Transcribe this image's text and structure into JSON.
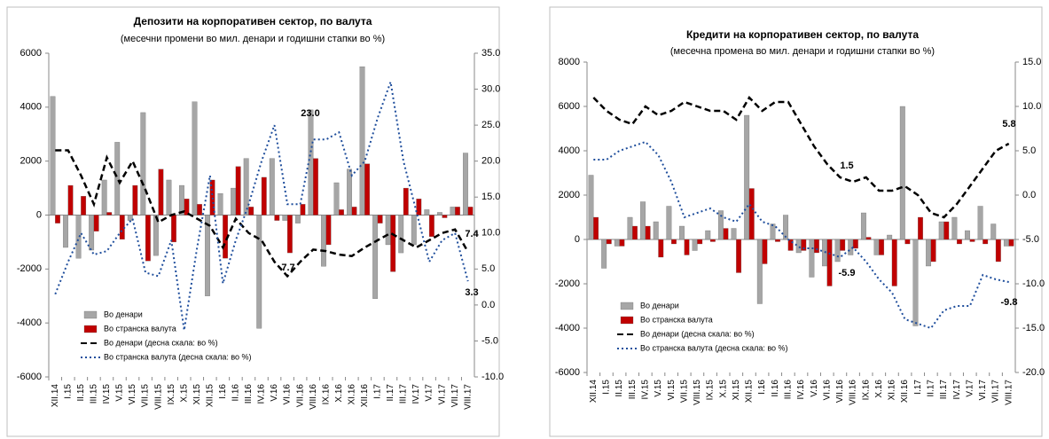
{
  "chart_data": [
    {
      "type": "bar-line",
      "title": "Депозити на корпоративен сектор, по валута",
      "subtitle": "(месечни промени во мил. денари и годишни стапки во %)",
      "categories": [
        "XII.14",
        "I.15",
        "II.15",
        "III.15",
        "IV.15",
        "V.15",
        "VI.15",
        "VII.15",
        "VIII.15",
        "IX.15",
        "X.15",
        "XI.15",
        "XII.15",
        "I.16",
        "II.16",
        "III.16",
        "IV.16",
        "V.16",
        "VI.16",
        "VII.16",
        "VIII.16",
        "IX.16",
        "X.16",
        "XI.16",
        "XII.16",
        "I.17",
        "II.17",
        "III.17",
        "IV.17",
        "V.17",
        "VI.17",
        "VII.17",
        "VIII.17"
      ],
      "series": [
        {
          "name": "Во денари",
          "kind": "bar",
          "color": "#a6a6a6",
          "values": [
            4400,
            -1200,
            -1600,
            -1300,
            1300,
            2700,
            -200,
            3800,
            -1500,
            1300,
            1100,
            4200,
            -3000,
            800,
            1000,
            2100,
            -4200,
            2100,
            -200,
            -300,
            3900,
            -1900,
            1200,
            1700,
            5500,
            -3100,
            -1100,
            -1400,
            -1100,
            200,
            100,
            300,
            2300
          ]
        },
        {
          "name": "Во странска валута",
          "kind": "bar",
          "color": "#c00000",
          "values": [
            -300,
            1100,
            700,
            -600,
            100,
            -900,
            1100,
            -1700,
            1700,
            -1000,
            600,
            400,
            1300,
            -1600,
            1800,
            300,
            1400,
            -200,
            -1400,
            400,
            2100,
            -1100,
            200,
            300,
            1900,
            -300,
            -2100,
            1000,
            600,
            -800,
            -100,
            300,
            300
          ]
        },
        {
          "name": "Во денари (десна скала: во %)",
          "kind": "line",
          "axis": "y2",
          "color": "#000000",
          "dash": "7,4",
          "values": [
            21.5,
            21.5,
            18,
            14,
            20.5,
            17,
            20,
            16,
            11.5,
            12.5,
            13,
            12,
            11,
            8,
            12,
            10,
            9,
            6,
            4,
            6,
            7.7,
            7.5,
            7,
            6.8,
            8,
            9,
            10,
            9,
            8,
            9,
            10,
            10.5,
            7.4
          ]
        },
        {
          "name": "Во странска валута (десна скала: во %)",
          "kind": "line",
          "axis": "y2",
          "color": "#1f4e9c",
          "dash": "2,3",
          "values": [
            1.5,
            6,
            10,
            7,
            7.5,
            10,
            12,
            4.5,
            4,
            9,
            -3.5,
            8,
            18,
            3,
            9,
            14,
            20,
            25,
            14,
            14,
            23,
            23,
            24,
            18,
            20,
            26,
            31,
            20,
            13,
            6,
            9,
            10,
            3.3
          ]
        }
      ],
      "ylim": [
        -6000,
        6000
      ],
      "yticks": [
        -6000,
        -4000,
        -2000,
        0,
        2000,
        4000,
        6000
      ],
      "y2lim": [
        -10,
        35
      ],
      "y2ticks": [
        {
          "value": -10,
          "label": "-10.0"
        },
        {
          "value": -5,
          "label": "-5.0"
        },
        {
          "value": 0,
          "label": "0.0"
        },
        {
          "value": 5,
          "label": "5.0"
        },
        {
          "value": 10,
          "label": "10.0"
        },
        {
          "value": 15,
          "label": "15.0"
        },
        {
          "value": 20,
          "label": "20.0"
        },
        {
          "value": 25,
          "label": "25.0"
        },
        {
          "value": 30,
          "label": "30.0"
        },
        {
          "value": 35,
          "label": "35.0"
        }
      ],
      "annotations": [
        "23.0",
        "7.7",
        "7.4",
        "3.3"
      ]
    },
    {
      "type": "bar-line",
      "title": "Кредити на корпоративен сектор, по валута",
      "subtitle": "(месечна промена во мил. денари и годишни стапки во %)",
      "categories": [
        "XII.14",
        "I.15",
        "II.15",
        "III.15",
        "IV.15",
        "V.15",
        "VI.15",
        "VII.15",
        "VIII.15",
        "IX.15",
        "X.15",
        "XI.15",
        "XII.15",
        "I.16",
        "II.16",
        "III.16",
        "IV.16",
        "V.16",
        "VI.16",
        "VII.16",
        "VIII.16",
        "IX.16",
        "X.16",
        "XI.16",
        "XII.16",
        "I.17",
        "II.17",
        "III.17",
        "IV.17",
        "V.17",
        "VI.17",
        "VII.17",
        "VIII.17"
      ],
      "series": [
        {
          "name": "Во денари",
          "kind": "bar",
          "color": "#a6a6a6",
          "values": [
            2900,
            -1300,
            -300,
            1000,
            1700,
            800,
            1500,
            600,
            -500,
            400,
            1300,
            500,
            5600,
            -2900,
            700,
            1100,
            -600,
            -1700,
            -1200,
            -1000,
            -700,
            1200,
            -700,
            200,
            6000,
            -3900,
            -1200,
            800,
            1000,
            400,
            1500,
            700,
            -300
          ]
        },
        {
          "name": "Во странска валута",
          "kind": "bar",
          "color": "#c00000",
          "values": [
            1000,
            -200,
            -300,
            600,
            600,
            -800,
            -200,
            -700,
            -200,
            -100,
            500,
            -1500,
            2300,
            -1100,
            -100,
            -500,
            -500,
            -600,
            -2100,
            -500,
            -400,
            100,
            -700,
            -2100,
            -200,
            1000,
            -1000,
            800,
            -200,
            -100,
            -200,
            -1000,
            -300
          ]
        },
        {
          "name": "Во денари  (десна скала: во %)",
          "kind": "line",
          "axis": "y2",
          "color": "#000000",
          "dash": "7,4",
          "values": [
            11,
            9.5,
            8.5,
            8,
            10,
            9,
            9.5,
            10.5,
            10,
            9.5,
            9.5,
            8.5,
            11,
            9.5,
            10.5,
            10.5,
            8,
            5.5,
            3.5,
            2,
            1.5,
            2,
            0.5,
            0.5,
            1,
            0,
            -2,
            -2.5,
            -1,
            1,
            3,
            5,
            5.8
          ]
        },
        {
          "name": "Во странска валута  (десна скала: во %)",
          "kind": "line",
          "axis": "y2",
          "color": "#1f4e9c",
          "dash": "2,3",
          "values": [
            4,
            4,
            5,
            5.5,
            6,
            4.5,
            1.5,
            -2.5,
            -2,
            -1.5,
            -2.5,
            -3,
            -1,
            -3,
            -3.5,
            -5,
            -6,
            -6,
            -6.5,
            -7,
            -5.9,
            -7.5,
            -9.5,
            -11,
            -14,
            -14.5,
            -15,
            -13,
            -12.5,
            -12.5,
            -9,
            -9.5,
            -9.8
          ]
        }
      ],
      "ylim": [
        -6000,
        8000
      ],
      "yticks": [
        -6000,
        -4000,
        -2000,
        0,
        2000,
        4000,
        6000,
        8000
      ],
      "y2lim": [
        -20,
        15
      ],
      "y2ticks": [
        {
          "value": -20,
          "label": "-20.0"
        },
        {
          "value": -15,
          "label": "-15.0"
        },
        {
          "value": -10,
          "label": "-10.0"
        },
        {
          "value": -5,
          "label": "-5.0"
        },
        {
          "value": 0,
          "label": "0.0"
        },
        {
          "value": 5,
          "label": "5.0"
        },
        {
          "value": 10,
          "label": "10.0"
        },
        {
          "value": 15,
          "label": "15.0"
        }
      ],
      "annotations": [
        "1.5",
        "-5.9",
        "5.8",
        "-9.8"
      ]
    }
  ]
}
